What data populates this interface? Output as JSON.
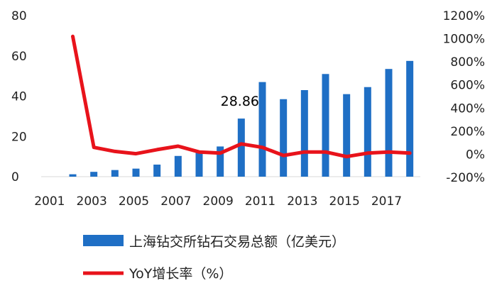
{
  "chart_data": {
    "type": "bar",
    "categories": [
      "2001",
      "2002",
      "2003",
      "2004",
      "2005",
      "2006",
      "2007",
      "2008",
      "2009",
      "2010",
      "2011",
      "2012",
      "2013",
      "2014",
      "2015",
      "2016",
      "2017",
      "2018"
    ],
    "x_tick_labels": [
      "2001",
      "2003",
      "2005",
      "2007",
      "2009",
      "2011",
      "2013",
      "2015",
      "2017"
    ],
    "series": [
      {
        "name": "上海钻交所钻石交易总额（亿美元）",
        "type": "bar",
        "axis": "left",
        "color": "#1f6fc5",
        "values": [
          0,
          1.2,
          2.4,
          3.3,
          4.0,
          6.0,
          10.3,
          12.3,
          15.0,
          28.86,
          47.0,
          38.5,
          43.0,
          51.0,
          41.0,
          44.5,
          53.5,
          57.5
        ]
      },
      {
        "name": "YoY增长率（%）",
        "type": "line",
        "axis": "right",
        "color": "#e8131b",
        "values": [
          null,
          1020,
          60,
          25,
          5,
          40,
          70,
          20,
          10,
          90,
          60,
          -10,
          20,
          20,
          -20,
          10,
          20,
          10
        ]
      }
    ],
    "y_left": {
      "ylim": [
        0,
        80
      ],
      "ticks": [
        "80",
        "60",
        "40",
        "20",
        "0"
      ],
      "tick_values": [
        80,
        60,
        40,
        20,
        0
      ]
    },
    "y_right": {
      "ylim": [
        -200,
        1200
      ],
      "ticks": [
        "1200%",
        "1000%",
        "800%",
        "600%",
        "400%",
        "200%",
        "0%",
        "-200%"
      ],
      "tick_values": [
        1200,
        1000,
        800,
        600,
        400,
        200,
        0,
        -200
      ]
    },
    "annotation": {
      "text": "28.86",
      "category": "2010"
    },
    "legend": {
      "position": "bottom"
    },
    "grid": false
  }
}
